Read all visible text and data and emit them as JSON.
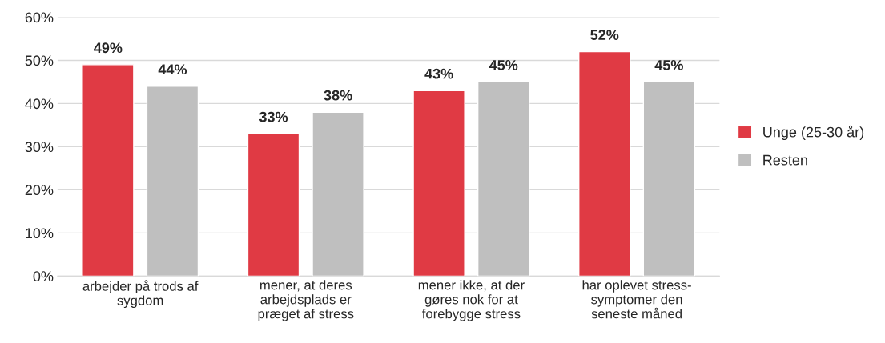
{
  "chart_data": {
    "type": "bar",
    "categories": [
      "arbejder på trods af\nsygdom",
      "mener, at deres\narbejdsplads er\npræget af stress",
      "mener ikke, at der\ngøres nok for at\nforebygge stress",
      "har oplevet stress-\nsymptomer den\nseneste måned"
    ],
    "series": [
      {
        "name": "Unge (25-30 år)",
        "color": "#e03a44",
        "values": [
          49,
          33,
          43,
          52
        ],
        "value_labels": [
          "49%",
          "33%",
          "43%",
          "52%"
        ]
      },
      {
        "name": "Resten",
        "color": "#bfbfbf",
        "values": [
          44,
          38,
          45,
          45
        ],
        "value_labels": [
          "44%",
          "38%",
          "45%",
          "45%"
        ]
      }
    ],
    "ylim": [
      0,
      60
    ],
    "yticks": [
      {
        "value": 0,
        "label": "0%"
      },
      {
        "value": 10,
        "label": "10%"
      },
      {
        "value": 20,
        "label": "20%"
      },
      {
        "value": 30,
        "label": "30%"
      },
      {
        "value": 40,
        "label": "40%"
      },
      {
        "value": 50,
        "label": "50%"
      },
      {
        "value": 60,
        "label": "60%"
      }
    ],
    "grid": "y",
    "legend": "right"
  }
}
